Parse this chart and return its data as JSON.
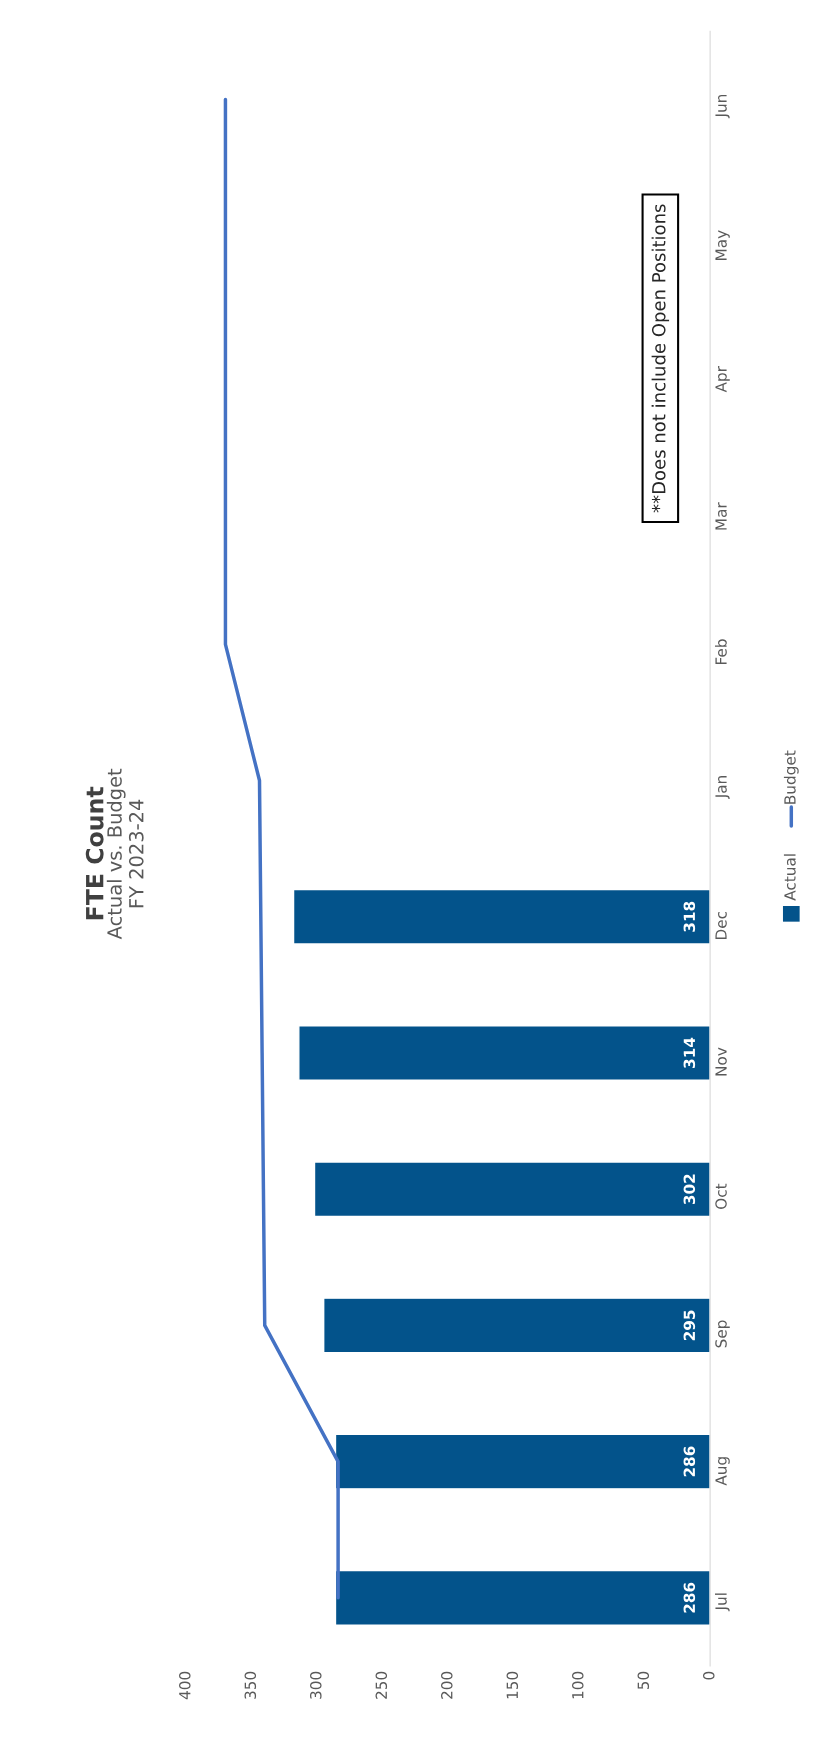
{
  "chart_data": {
    "type": "bar",
    "orientation": "horizontal",
    "title": "FTE Count",
    "subtitle": "Actual vs. Budget\nFY 2023-24",
    "categories": [
      "Jun",
      "May",
      "Apr",
      "Mar",
      "Feb",
      "Jan",
      "Dec",
      "Nov",
      "Oct",
      "Sep",
      "Aug",
      "Jul"
    ],
    "series": [
      {
        "name": "Actual",
        "color": "#03538b",
        "values": [
          null,
          null,
          null,
          null,
          null,
          null,
          318,
          314,
          302,
          295,
          286,
          286
        ],
        "value_labels": [
          null,
          null,
          null,
          null,
          null,
          null,
          "318",
          "314",
          "302",
          "295",
          "286",
          "286"
        ]
      },
      {
        "name": "Budget",
        "type": "line",
        "color": "#4472c4",
        "values": [
          370,
          370,
          370,
          370,
          370,
          344,
          343,
          342,
          341,
          340,
          284,
          284
        ]
      }
    ],
    "xlim": [
      400,
      0
    ],
    "xticks": [
      0,
      50,
      100,
      150,
      200,
      250,
      300,
      350,
      400
    ],
    "grid": false,
    "legend": "right",
    "annotations": [
      "**Does not include Open Positions"
    ]
  }
}
